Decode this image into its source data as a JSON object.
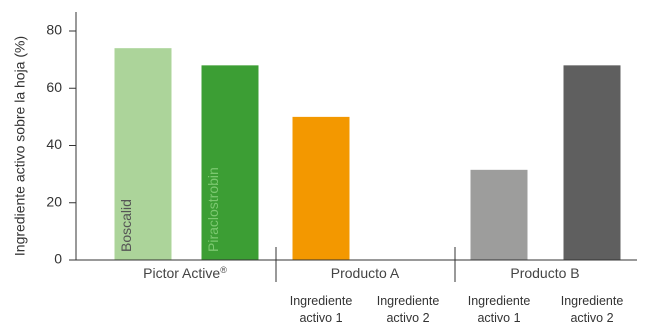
{
  "chart_data": {
    "type": "bar",
    "ylabel": "Ingrediente activo sobre la hoja (%)",
    "ylim": [
      0,
      85
    ],
    "yticks": [
      0,
      20,
      40,
      60,
      80
    ],
    "grid": false,
    "groups": [
      {
        "name": "Pictor Active",
        "name_mark": "®",
        "name_color": "#3aaa35",
        "bars": [
          {
            "label": "Boscalid",
            "value": 74,
            "color": "#acd49a",
            "text_color": "#555555"
          },
          {
            "label": "Piraclostrobin",
            "value": 68,
            "color": "#3c9e34",
            "text_color": "#7cc870"
          }
        ]
      },
      {
        "name": "Producto A",
        "bars": [
          {
            "label": "Ingrediente activo 1",
            "value": 50,
            "color": "#f39800"
          },
          {
            "label": "Ingrediente activo 2",
            "value": 0,
            "color": "#f39800"
          }
        ]
      },
      {
        "name": "Producto B",
        "bars": [
          {
            "label": "Ingrediente activo 1",
            "value": 31.5,
            "color": "#9d9d9c"
          },
          {
            "label": "Ingrediente activo 2",
            "value": 68,
            "color": "#5f5f5f"
          }
        ]
      }
    ],
    "sublabels": [
      [
        "Ingrediente",
        "activo 1"
      ],
      [
        "Ingrediente",
        "activo 2"
      ],
      [
        "Ingrediente",
        "activo 1"
      ],
      [
        "Ingrediente",
        "activo 2"
      ]
    ]
  }
}
